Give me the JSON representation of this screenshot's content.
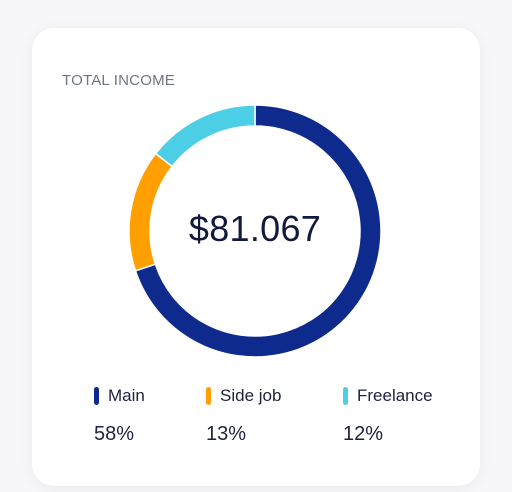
{
  "card": {
    "title": "TOTAL INCOME",
    "total": "$81.067"
  },
  "chart_data": {
    "type": "pie",
    "donut": true,
    "categories": [
      "Main",
      "Side job",
      "Freelance"
    ],
    "values": [
      58,
      13,
      12
    ],
    "value_labels": [
      "58%",
      "13%",
      "12%"
    ],
    "colors": [
      "#0e2a8c",
      "#ffa000",
      "#4ccfe6"
    ],
    "start_angle": 0,
    "legend": "bottom"
  }
}
